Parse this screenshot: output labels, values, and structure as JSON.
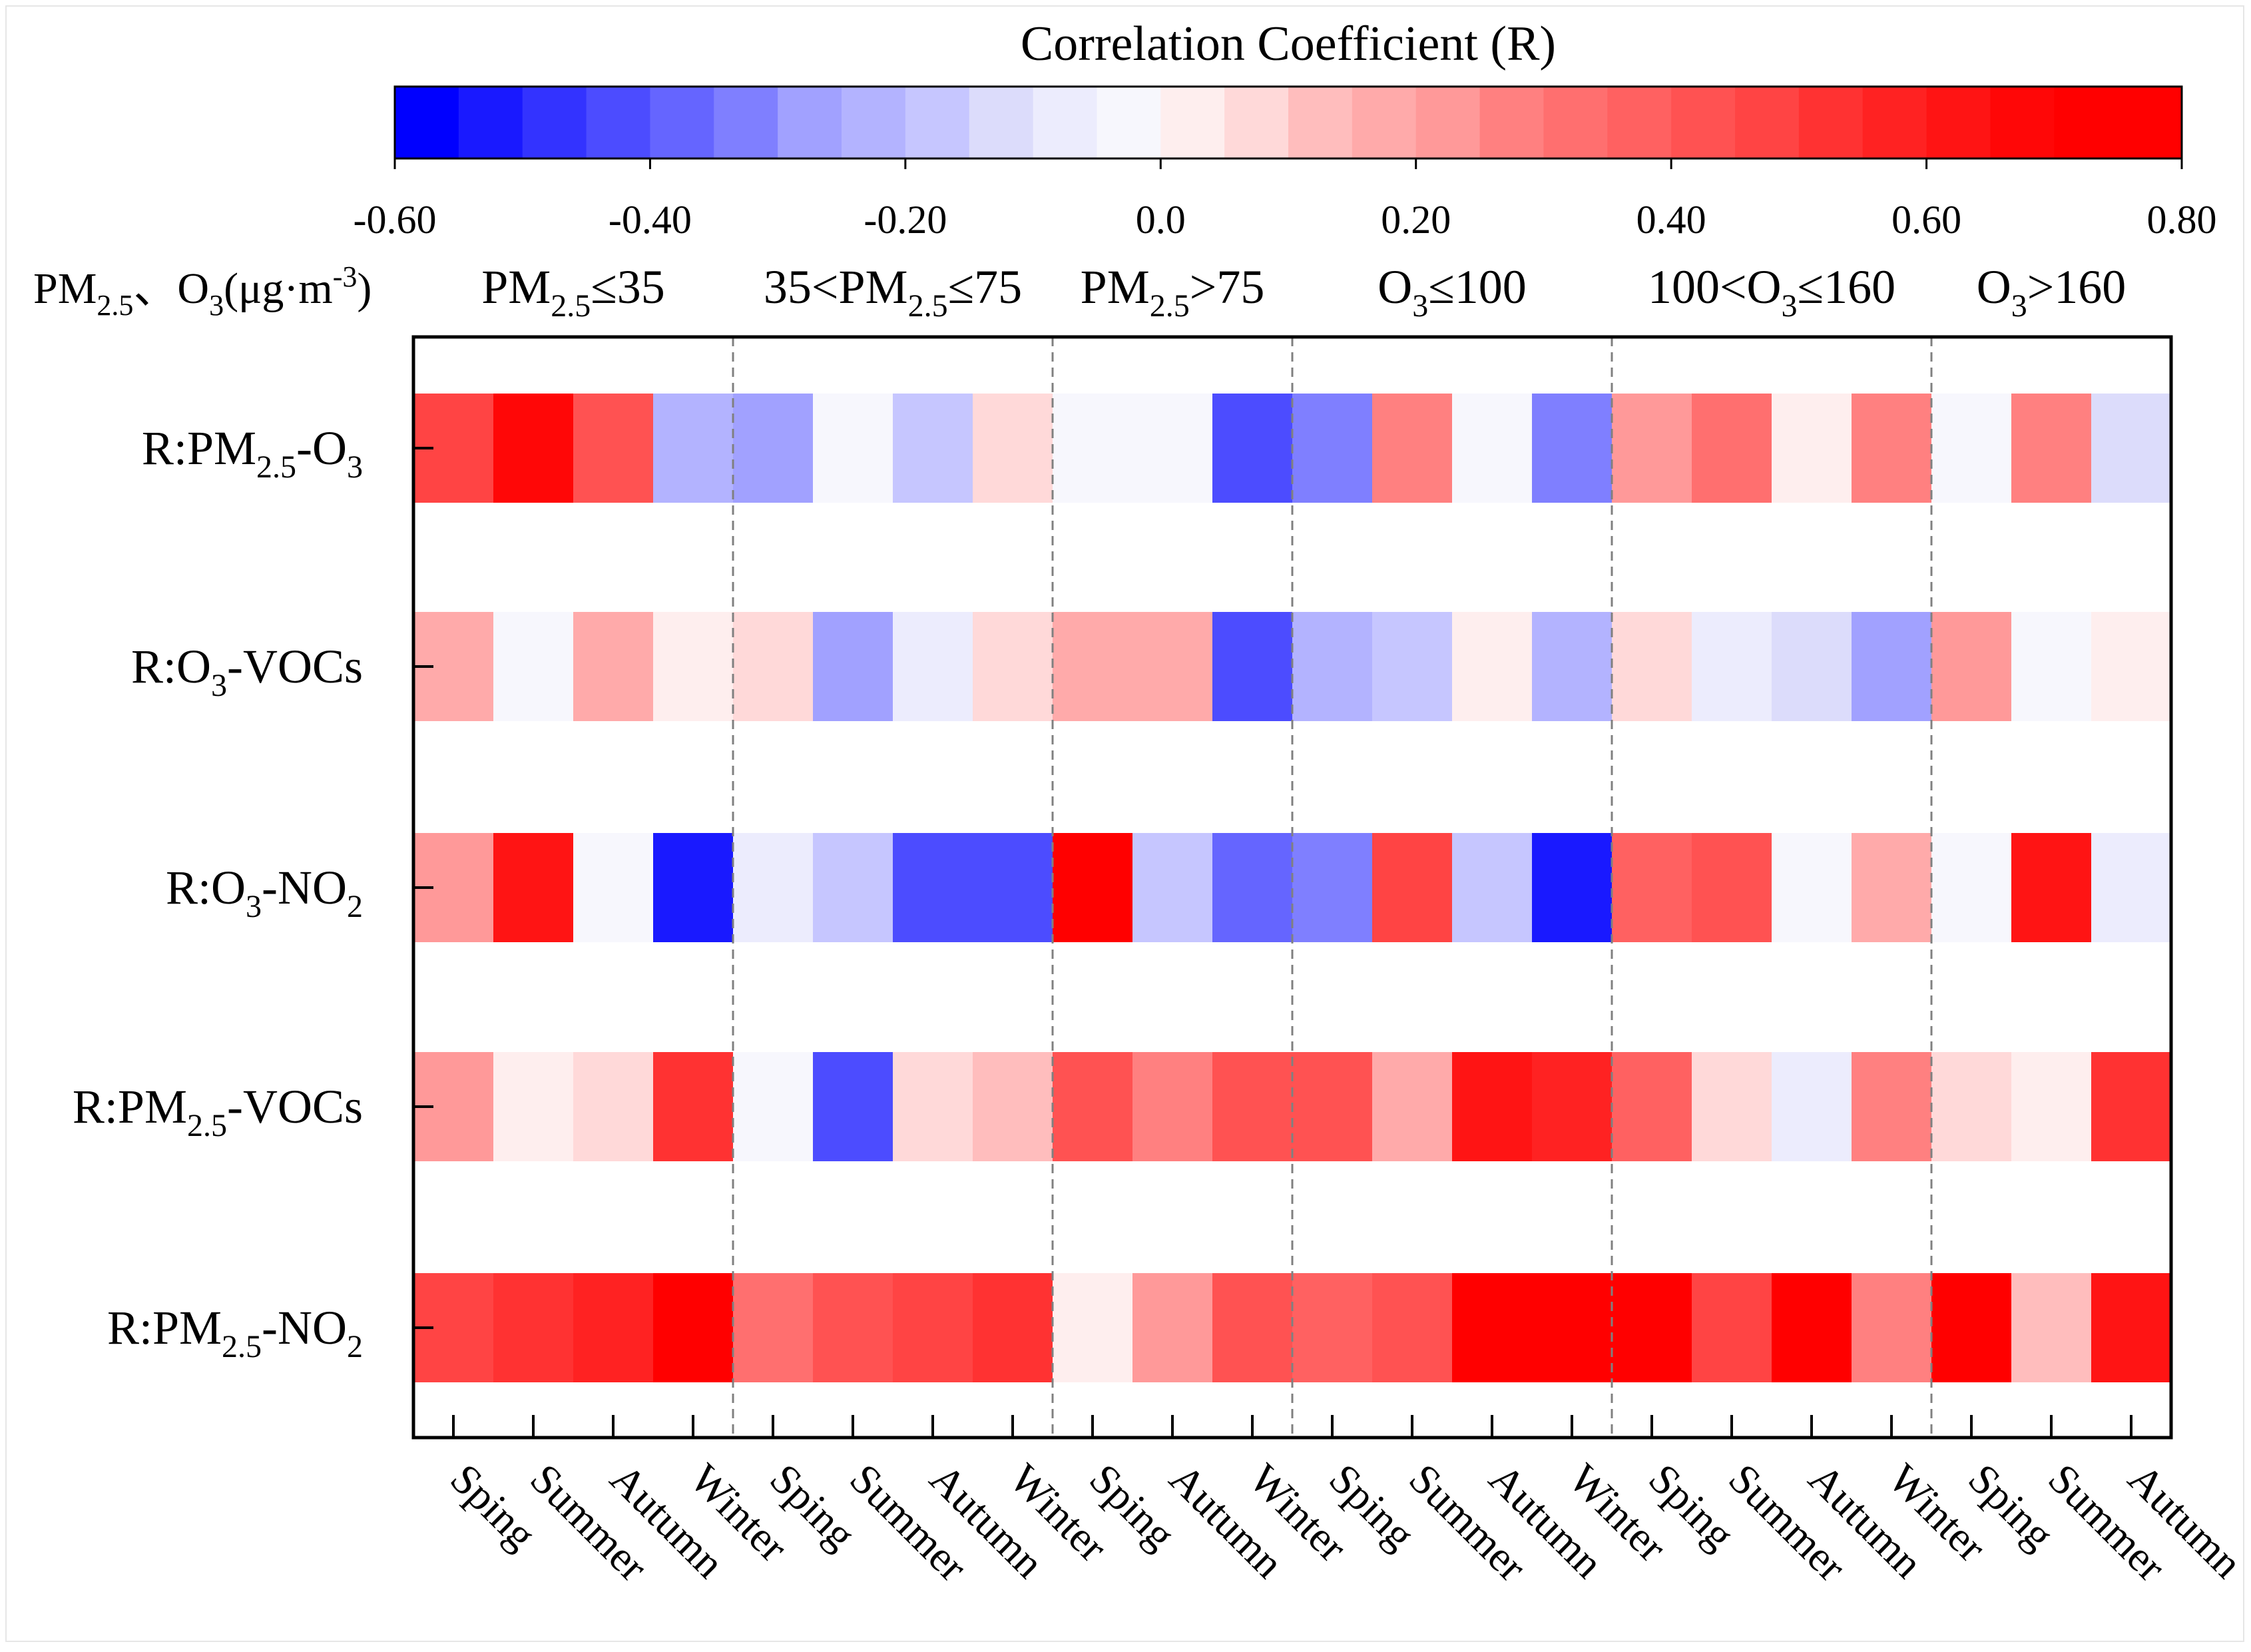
{
  "chart_data": {
    "type": "heatmap",
    "title": "Correlation Coefficient (R)",
    "colorbar": {
      "min": -0.6,
      "max": 0.8,
      "step": 0.05,
      "ticks": [
        -0.6,
        -0.4,
        -0.2,
        0.0,
        0.2,
        0.4,
        0.6,
        0.8
      ],
      "tick_labels": [
        "-0.60",
        "-0.40",
        "-0.20",
        "0.0",
        "0.20",
        "0.40",
        "0.60",
        "0.80"
      ],
      "colors": [
        "#0000ff",
        "#1919ff",
        "#3333ff",
        "#4c4cff",
        "#6565ff",
        "#7f7fff",
        "#a1a1ff",
        "#b3b3ff",
        "#c6c6ff",
        "#dcdcfb",
        "#ececfd",
        "#f7f7fd",
        "#feeeee",
        "#ffd9d9",
        "#ffbdbd",
        "#ffaaaa",
        "#ff9999",
        "#ff8080",
        "#ff6f6f",
        "#ff6161",
        "#ff5252",
        "#ff4444",
        "#ff3232",
        "#ff2222",
        "#ff1414",
        "#ff0707",
        "#ff0000",
        "#ff0000"
      ]
    },
    "groups_header": {
      "prefix_parts": [
        {
          "t": "PM",
          "s": "n"
        },
        {
          "t": "2.5",
          "s": "sub"
        },
        {
          "t": "、O",
          "s": "n"
        },
        {
          "t": "3",
          "s": "sub"
        },
        {
          "t": "(μg·m",
          "s": "n"
        },
        {
          "t": "-3",
          "s": "sup"
        },
        {
          "t": ")",
          "s": "n"
        }
      ],
      "groups": [
        {
          "parts": [
            {
              "t": "PM",
              "s": "n"
            },
            {
              "t": "2.5",
              "s": "sub"
            },
            {
              "t": "≤35",
              "s": "n"
            }
          ]
        },
        {
          "parts": [
            {
              "t": "35<PM",
              "s": "n"
            },
            {
              "t": "2.5",
              "s": "sub"
            },
            {
              "t": "≤75",
              "s": "n"
            }
          ]
        },
        {
          "parts": [
            {
              "t": "PM",
              "s": "n"
            },
            {
              "t": "2.5",
              "s": "sub"
            },
            {
              "t": ">75",
              "s": "n"
            }
          ]
        },
        {
          "parts": [
            {
              "t": "O",
              "s": "n"
            },
            {
              "t": "3",
              "s": "sub"
            },
            {
              "t": "≤100",
              "s": "n"
            }
          ]
        },
        {
          "parts": [
            {
              "t": "100<O",
              "s": "n"
            },
            {
              "t": "3",
              "s": "sub"
            },
            {
              "t": "≤160",
              "s": "n"
            }
          ]
        },
        {
          "parts": [
            {
              "t": "O",
              "s": "n"
            },
            {
              "t": "3",
              "s": "sub"
            },
            {
              "t": ">160",
              "s": "n"
            }
          ]
        }
      ]
    },
    "x_categories": [
      "Sping",
      "Summer",
      "Autumn",
      "Winter",
      "Sping",
      "Summer",
      "Autumn",
      "Winter",
      "Sping",
      "Autumn",
      "Winter",
      "Sping",
      "Summer",
      "Autumn",
      "Winter",
      "Sping",
      "Summer",
      "Autumn",
      "Winter",
      "Sping",
      "Summer",
      "Autumn"
    ],
    "group_sizes": [
      4,
      4,
      3,
      4,
      4,
      3
    ],
    "rows": [
      {
        "label_parts": [
          {
            "t": "R:PM",
            "s": "n"
          },
          {
            "t": "2.5",
            "s": "sub"
          },
          {
            "t": "-O",
            "s": "n"
          },
          {
            "t": "3",
            "s": "sub"
          }
        ],
        "values": [
          0.46,
          0.66,
          0.44,
          -0.22,
          -0.27,
          -0.05,
          -0.2,
          0.07,
          -0.05,
          -0.05,
          -0.42,
          -0.35,
          0.26,
          -0.05,
          -0.35,
          0.21,
          0.31,
          0.0,
          0.26,
          -0.05,
          0.26,
          -0.12
        ]
      },
      {
        "label_parts": [
          {
            "t": "R:O",
            "s": "n"
          },
          {
            "t": "3",
            "s": "sub"
          },
          {
            "t": "-VOCs",
            "s": "n"
          }
        ],
        "values": [
          0.16,
          -0.05,
          0.16,
          0.0,
          0.07,
          -0.27,
          -0.1,
          0.07,
          0.17,
          0.17,
          -0.42,
          -0.22,
          -0.16,
          0.0,
          -0.22,
          0.07,
          -0.08,
          -0.15,
          -0.27,
          0.21,
          -0.05,
          0.0
        ]
      },
      {
        "label_parts": [
          {
            "t": "R:O",
            "s": "n"
          },
          {
            "t": "3",
            "s": "sub"
          },
          {
            "t": "-NO",
            "s": "n"
          },
          {
            "t": "2",
            "s": "sub"
          }
        ],
        "values": [
          0.21,
          0.62,
          -0.05,
          -0.55,
          -0.1,
          -0.16,
          -0.42,
          -0.42,
          0.79,
          -0.16,
          -0.38,
          -0.33,
          0.46,
          -0.2,
          -0.55,
          0.36,
          0.41,
          -0.05,
          0.16,
          -0.05,
          0.62,
          -0.1
        ]
      },
      {
        "label_parts": [
          {
            "t": "R:PM",
            "s": "n"
          },
          {
            "t": "2.5",
            "s": "sub"
          },
          {
            "t": "-VOCs",
            "s": "n"
          }
        ],
        "values": [
          0.21,
          0.0,
          0.07,
          0.51,
          -0.05,
          -0.42,
          0.07,
          0.11,
          0.41,
          0.26,
          0.41,
          0.41,
          0.16,
          0.62,
          0.56,
          0.36,
          0.07,
          -0.1,
          0.26,
          0.07,
          0.0,
          0.51
        ]
      },
      {
        "label_parts": [
          {
            "t": "R:PM",
            "s": "n"
          },
          {
            "t": "2.5",
            "s": "sub"
          },
          {
            "t": "-NO",
            "s": "n"
          },
          {
            "t": "2",
            "s": "sub"
          }
        ],
        "values": [
          0.46,
          0.51,
          0.56,
          0.71,
          0.31,
          0.41,
          0.46,
          0.51,
          0.0,
          0.21,
          0.41,
          0.36,
          0.41,
          0.79,
          0.71,
          0.71,
          0.46,
          0.76,
          0.26,
          0.76,
          0.11,
          0.62
        ]
      }
    ]
  }
}
